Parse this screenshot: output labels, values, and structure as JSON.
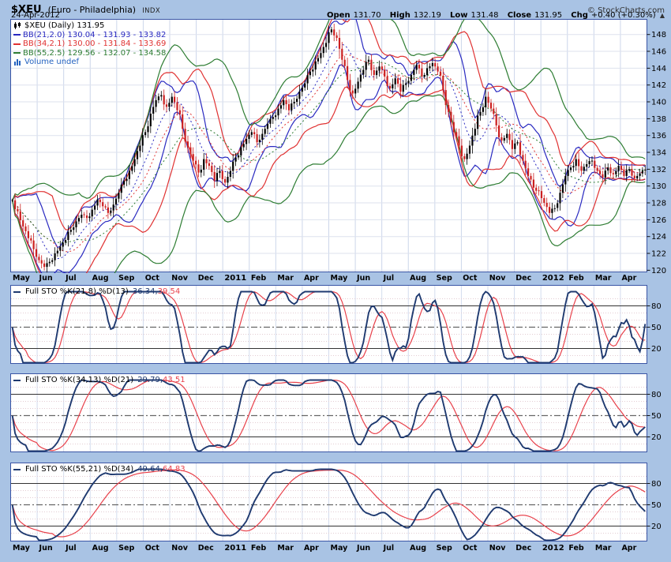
{
  "header": {
    "symbol": "$XEU",
    "name": "(Euro - Philadelphia)",
    "type": "INDX",
    "copyright": "© StockCharts.com",
    "date": "24-Apr-2012",
    "quote": {
      "open_label": "Open",
      "open": "131.70",
      "high_label": "High",
      "high": "132.19",
      "low_label": "Low",
      "low": "131.48",
      "close_label": "Close",
      "close": "131.95",
      "chg_label": "Chg",
      "chg": "+0.40 (+0.30%)",
      "arrow": "▲"
    }
  },
  "chart_data": {
    "type": "candlestick",
    "title": "$XEU (Euro - Philadelphia) INDX Daily",
    "main_legend_symbol": "$XEU (Daily) 131.95",
    "volume_legend": "Volume undef",
    "volume_color": "#2563c0",
    "x_months": [
      "May",
      "Jun",
      "Jul",
      "Aug",
      "Sep",
      "Oct",
      "Nov",
      "Dec",
      "2011",
      "Feb",
      "Mar",
      "Apr",
      "May",
      "Jun",
      "Jul",
      "Aug",
      "Sep",
      "Oct",
      "Nov",
      "Dec",
      "2012",
      "Feb",
      "Mar",
      "Apr"
    ],
    "ylim_main": [
      119.8,
      149.8
    ],
    "yticks_main": [
      148,
      146,
      144,
      142,
      140,
      138,
      136,
      134,
      132,
      130,
      128,
      126,
      124,
      122,
      120
    ],
    "panel_yticks": [
      80,
      50,
      20
    ],
    "candle_colors": {
      "up": "#000000",
      "down": "#cc2020"
    },
    "price_close": [
      128.3,
      127.0,
      125.2,
      123.8,
      122.5,
      121.2,
      120.4,
      121.0,
      122.0,
      122.8,
      123.6,
      124.8,
      125.8,
      126.6,
      126.2,
      127.2,
      128.4,
      127.6,
      126.8,
      127.8,
      129.2,
      130.6,
      131.8,
      133.2,
      134.8,
      136.4,
      138.6,
      140.2,
      140.8,
      139.4,
      140.6,
      139.0,
      136.8,
      134.6,
      133.0,
      131.6,
      133.2,
      132.4,
      130.6,
      131.8,
      130.4,
      131.8,
      133.4,
      134.6,
      135.6,
      136.4,
      135.2,
      136.2,
      137.4,
      138.2,
      139.2,
      140.2,
      139.0,
      140.0,
      141.2,
      142.2,
      143.6,
      144.8,
      145.8,
      147.0,
      148.6,
      147.6,
      145.0,
      142.6,
      141.0,
      142.4,
      143.8,
      145.0,
      143.2,
      144.2,
      143.0,
      141.6,
      142.8,
      141.2,
      142.2,
      143.2,
      144.4,
      143.0,
      144.0,
      144.6,
      143.6,
      141.4,
      138.8,
      136.4,
      134.8,
      133.2,
      134.8,
      136.8,
      138.8,
      140.6,
      139.2,
      137.2,
      135.4,
      136.2,
      134.4,
      135.2,
      133.0,
      131.2,
      129.8,
      129.4,
      128.0,
      126.8,
      127.4,
      129.2,
      131.2,
      132.2,
      133.2,
      131.8,
      132.6,
      133.0,
      131.8,
      131.0,
      132.2,
      131.4,
      132.4,
      131.2,
      132.0,
      130.9,
      131.5,
      131.95
    ],
    "bollinger": [
      {
        "legend": "BB(21,2.0) 130.04 - 131.93 - 133.82",
        "days": 21,
        "mult": 2.0,
        "color": "#2929c0"
      },
      {
        "legend": "BB(34,2.1) 130.00 - 131.84 - 133.69",
        "days": 34,
        "mult": 2.1,
        "color": "#e03232"
      },
      {
        "legend": "BB(55,2.5) 129.56 - 132.07 - 134.58",
        "days": 55,
        "mult": 2.5,
        "color": "#2e7d33"
      }
    ],
    "stoch_colors": {
      "k": "#1f3a70",
      "d": "#e8414b"
    },
    "stochastics": [
      {
        "legend": "Full STO %K(21,8) %D(13)",
        "k_value": "36.34",
        "d_value": "39.54",
        "k_days": 21,
        "k_smooth": 8,
        "d_days": 13
      },
      {
        "legend": "Full STO %K(34,13) %D(21)",
        "k_value": "29.79",
        "d_value": "43.51",
        "k_days": 34,
        "k_smooth": 13,
        "d_days": 21
      },
      {
        "legend": "Full STO %K(55,21) %D(34)",
        "k_value": "49.64",
        "d_value": "64.83",
        "k_days": 55,
        "k_smooth": 21,
        "d_days": 34
      }
    ],
    "grid": true,
    "legend_position": "top-left"
  }
}
